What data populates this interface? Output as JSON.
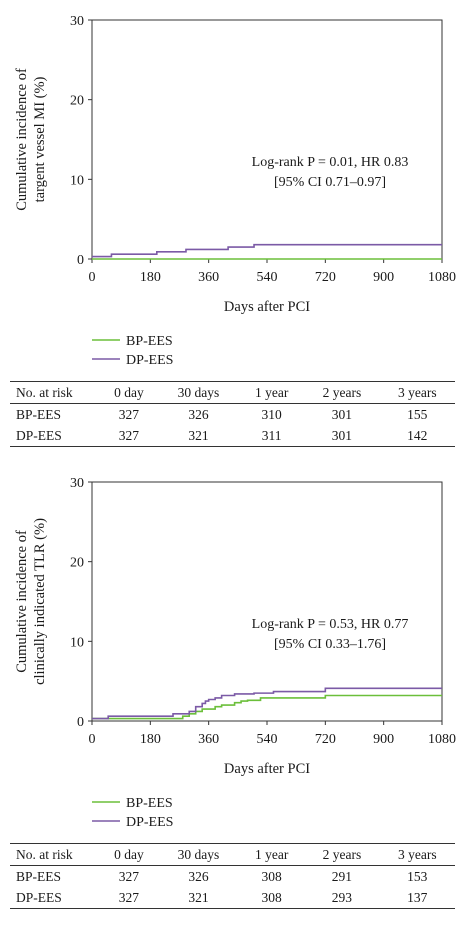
{
  "chart_data": [
    {
      "type": "line",
      "step": true,
      "ylabel_lines": [
        "Cumulative incidence of",
        "targent vessel MI (%)"
      ],
      "xlabel": "Days after PCI",
      "xlim": [
        0,
        1080
      ],
      "ylim": [
        0,
        30
      ],
      "xticks": [
        0,
        180,
        360,
        540,
        720,
        900,
        1080
      ],
      "yticks": [
        0,
        10,
        20,
        30
      ],
      "annotation": [
        "Log-rank P = 0.01, HR 0.83",
        "[95% CI 0.71–0.97]"
      ],
      "series": [
        {
          "name": "BP-EES",
          "color": "#6bbf3a",
          "x": [
            0,
            1080
          ],
          "y": [
            0,
            0
          ]
        },
        {
          "name": "DP-EES",
          "color": "#7b5aa6",
          "x": [
            0,
            50,
            60,
            180,
            200,
            270,
            290,
            360,
            420,
            480,
            500,
            1080
          ],
          "y": [
            0.3,
            0.3,
            0.6,
            0.6,
            0.9,
            0.9,
            1.2,
            1.2,
            1.5,
            1.5,
            1.8,
            1.8
          ]
        }
      ],
      "risk_table": {
        "header": [
          "No. at risk",
          "0 day",
          "30 days",
          "1 year",
          "2 years",
          "3 years"
        ],
        "rows": [
          {
            "label": "BP-EES",
            "values": [
              "327",
              "326",
              "310",
              "301",
              "155"
            ]
          },
          {
            "label": "DP-EES",
            "values": [
              "327",
              "321",
              "311",
              "301",
              "142"
            ]
          }
        ]
      }
    },
    {
      "type": "line",
      "step": true,
      "ylabel_lines": [
        "Cumulative incidence of",
        "clinically indicated TLR (%)"
      ],
      "xlabel": "Days after PCI",
      "xlim": [
        0,
        1080
      ],
      "ylim": [
        0,
        30
      ],
      "xticks": [
        0,
        180,
        360,
        540,
        720,
        900,
        1080
      ],
      "yticks": [
        0,
        10,
        20,
        30
      ],
      "annotation": [
        "Log-rank P = 0.53, HR 0.77",
        "[95% CI 0.33–1.76]"
      ],
      "series": [
        {
          "name": "BP-EES",
          "color": "#6bbf3a",
          "x": [
            0,
            40,
            280,
            300,
            320,
            340,
            360,
            380,
            400,
            440,
            460,
            480,
            520,
            720,
            1080
          ],
          "y": [
            0.3,
            0.3,
            0.6,
            0.9,
            1.2,
            1.5,
            1.5,
            1.8,
            2.0,
            2.3,
            2.5,
            2.6,
            2.9,
            3.2,
            3.2
          ]
        },
        {
          "name": "DP-EES",
          "color": "#7b5aa6",
          "x": [
            0,
            50,
            180,
            250,
            300,
            320,
            340,
            350,
            360,
            380,
            400,
            440,
            500,
            560,
            720,
            1080
          ],
          "y": [
            0.3,
            0.6,
            0.6,
            0.9,
            1.2,
            1.8,
            2.2,
            2.5,
            2.7,
            2.9,
            3.2,
            3.4,
            3.5,
            3.7,
            4.1,
            4.1
          ]
        }
      ],
      "risk_table": {
        "header": [
          "No. at risk",
          "0 day",
          "30 days",
          "1 year",
          "2 years",
          "3 years"
        ],
        "rows": [
          {
            "label": "BP-EES",
            "values": [
              "327",
              "326",
              "308",
              "291",
              "153"
            ]
          },
          {
            "label": "DP-EES",
            "values": [
              "327",
              "321",
              "308",
              "293",
              "137"
            ]
          }
        ]
      }
    }
  ]
}
